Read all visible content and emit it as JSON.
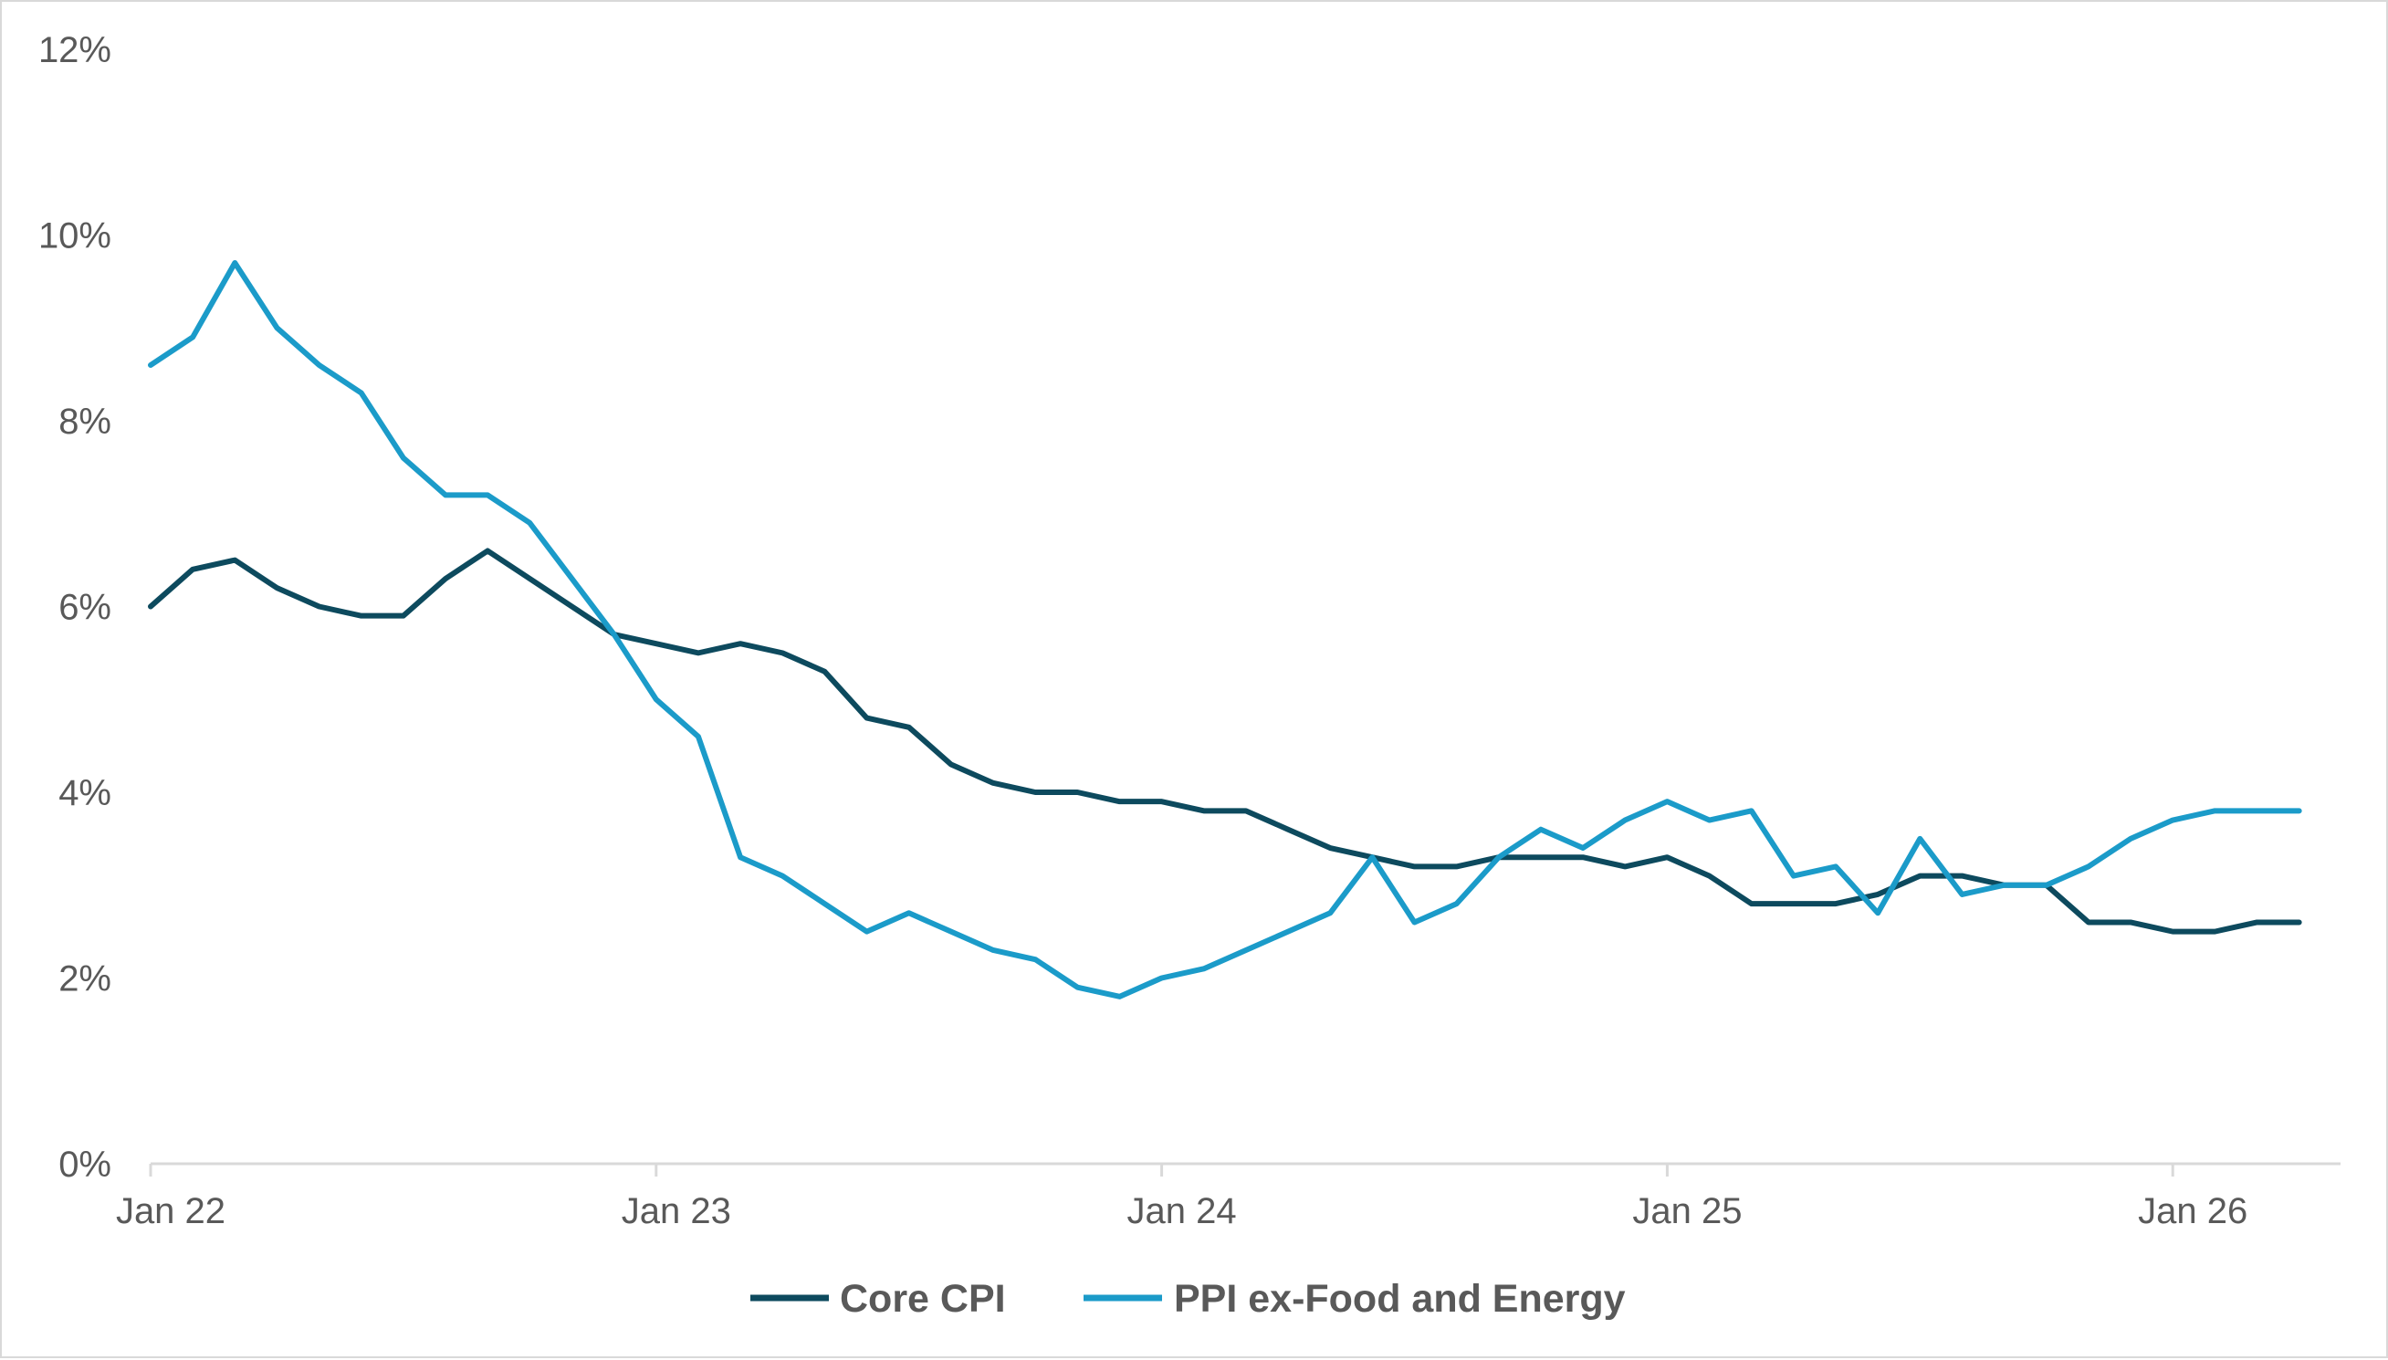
{
  "chart_data": {
    "type": "line",
    "title": "",
    "xlabel": "",
    "ylabel": "",
    "ylim": [
      0,
      12
    ],
    "y_ticks": [
      "0%",
      "2%",
      "4%",
      "6%",
      "8%",
      "10%",
      "12%"
    ],
    "x_tick_labels": [
      "Jan 22",
      "Jan 23",
      "Jan 24",
      "Jan 25",
      "Jan 26"
    ],
    "x_start": "2022-01",
    "grid": false,
    "legend_position": "bottom-center",
    "series": [
      {
        "name": "Core CPI",
        "color": "#0d4a5e",
        "values": [
          6.0,
          6.4,
          6.5,
          6.2,
          6.0,
          5.9,
          5.9,
          6.3,
          6.6,
          6.3,
          6.0,
          5.7,
          5.6,
          5.5,
          5.6,
          5.5,
          5.3,
          4.8,
          4.7,
          4.3,
          4.1,
          4.0,
          4.0,
          3.9,
          3.9,
          3.8,
          3.8,
          3.6,
          3.4,
          3.3,
          3.2,
          3.2,
          3.3,
          3.3,
          3.3,
          3.2,
          3.3,
          3.1,
          2.8,
          2.8,
          2.8,
          2.9,
          3.1,
          3.1,
          3.0,
          3.0,
          2.6,
          2.6,
          2.5,
          2.5,
          2.6,
          2.6
        ]
      },
      {
        "name": "PPI ex-Food and Energy",
        "color": "#1b9bc9",
        "values": [
          8.6,
          8.9,
          9.7,
          9.0,
          8.6,
          8.3,
          7.6,
          7.2,
          7.2,
          6.9,
          6.3,
          5.7,
          5.0,
          4.6,
          3.3,
          3.1,
          2.8,
          2.5,
          2.7,
          2.5,
          2.3,
          2.2,
          1.9,
          1.8,
          2.0,
          2.1,
          2.3,
          2.5,
          2.7,
          3.3,
          2.6,
          2.8,
          3.3,
          3.6,
          3.4,
          3.7,
          3.9,
          3.7,
          3.8,
          3.1,
          3.2,
          2.7,
          3.5,
          2.9,
          3.0,
          3.0,
          3.2,
          3.5,
          3.7,
          3.8,
          3.8,
          3.8
        ]
      }
    ]
  }
}
